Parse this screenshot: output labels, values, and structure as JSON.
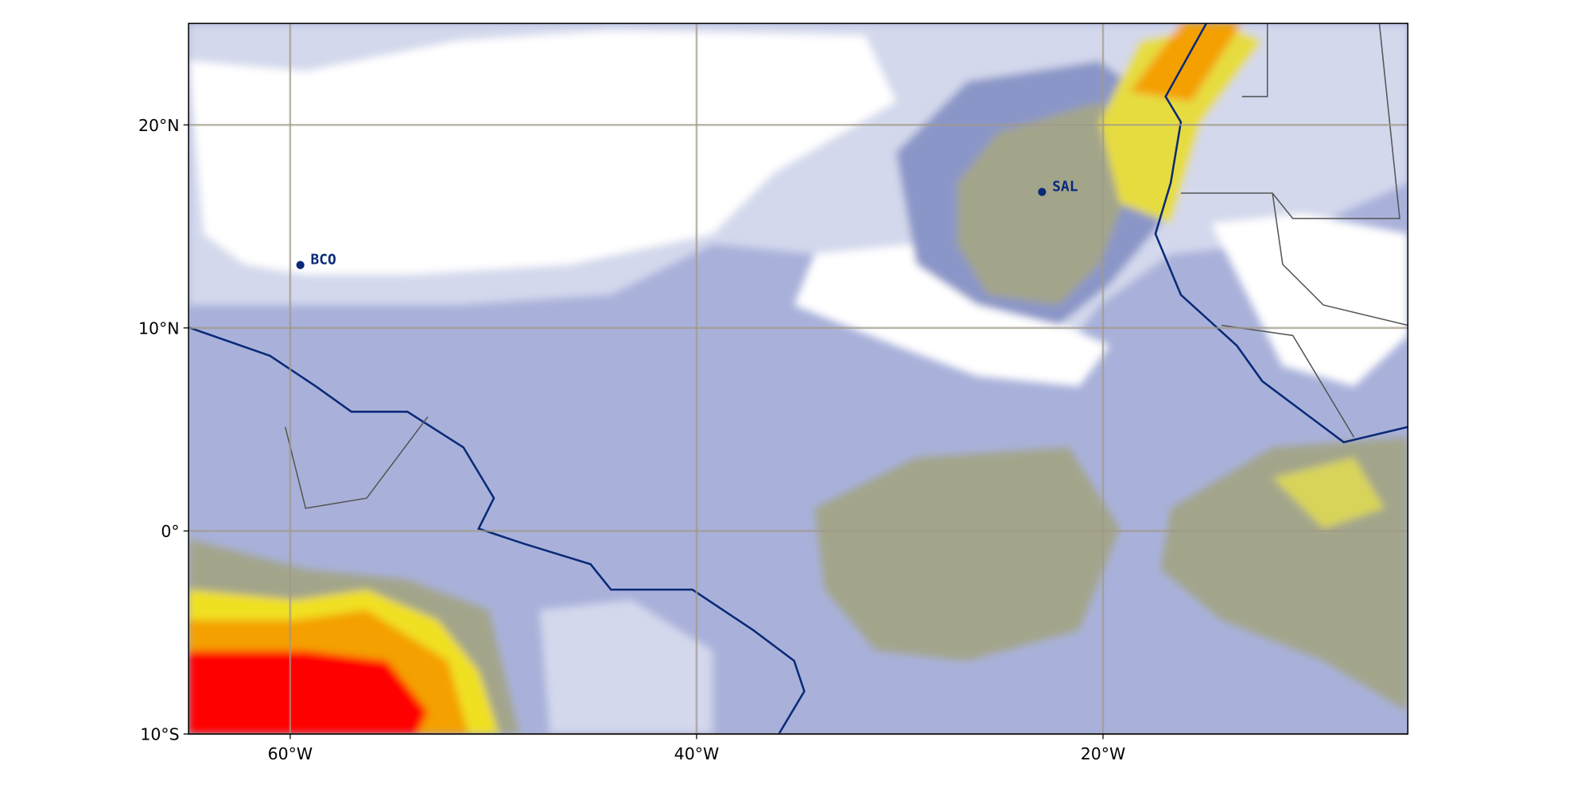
{
  "map": {
    "xlim": [
      -65,
      -5
    ],
    "ylim": [
      -10,
      25
    ],
    "xticks": [
      {
        "value": -60,
        "label": "60°W"
      },
      {
        "value": -40,
        "label": "40°W"
      },
      {
        "value": -20,
        "label": "20°W"
      }
    ],
    "yticks": [
      {
        "value": -10,
        "label": "10°S"
      },
      {
        "value": 0,
        "label": "0°"
      },
      {
        "value": 10,
        "label": "10°N"
      },
      {
        "value": 20,
        "label": "20°N"
      }
    ],
    "stations": [
      {
        "name": "BCO",
        "lon": -59.5,
        "lat": 13.1
      },
      {
        "name": "SAL",
        "lon": -23,
        "lat": 16.7
      }
    ]
  }
}
